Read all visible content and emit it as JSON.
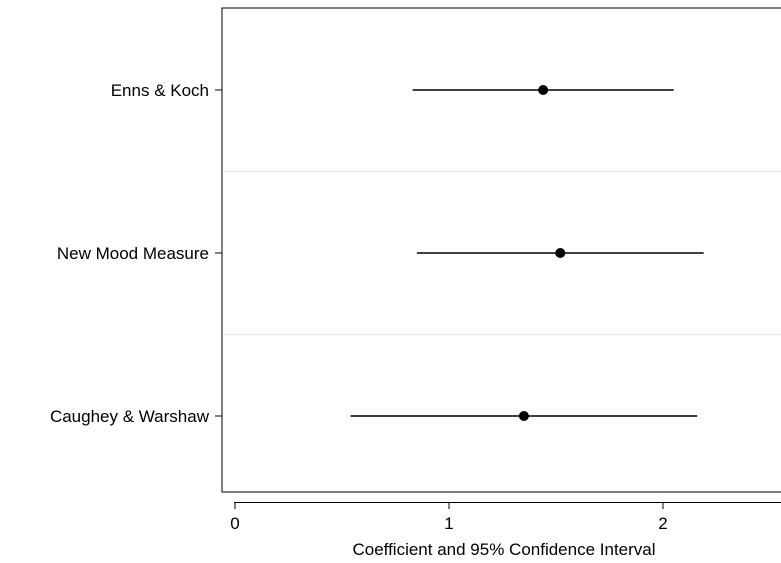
{
  "chart_data": {
    "type": "scatter",
    "title": "",
    "xlabel": "Coefficient and 95% Confidence Interval",
    "ylabel": "",
    "xlim": [
      -0.06,
      2.5
    ],
    "x_ticks": [
      0,
      1,
      2
    ],
    "x_tick_labels": [
      "0",
      "1",
      "2"
    ],
    "grid": "horizontal separators between categories",
    "legend": "none",
    "categories": [
      "Enns & Koch",
      "New Mood Measure",
      "Caughey & Warshaw"
    ],
    "estimates": [
      {
        "category": "Enns & Koch",
        "coef": 1.44,
        "ci_low": 0.83,
        "ci_high": 2.05
      },
      {
        "category": "New Mood Measure",
        "coef": 1.52,
        "ci_low": 0.85,
        "ci_high": 2.19
      },
      {
        "category": "Caughey & Warshaw",
        "coef": 1.35,
        "ci_low": 0.54,
        "ci_high": 2.16
      }
    ],
    "colors": {
      "marker": "#000000",
      "line": "#000000",
      "separator": "#e8eef0",
      "frame": "#000000"
    }
  }
}
